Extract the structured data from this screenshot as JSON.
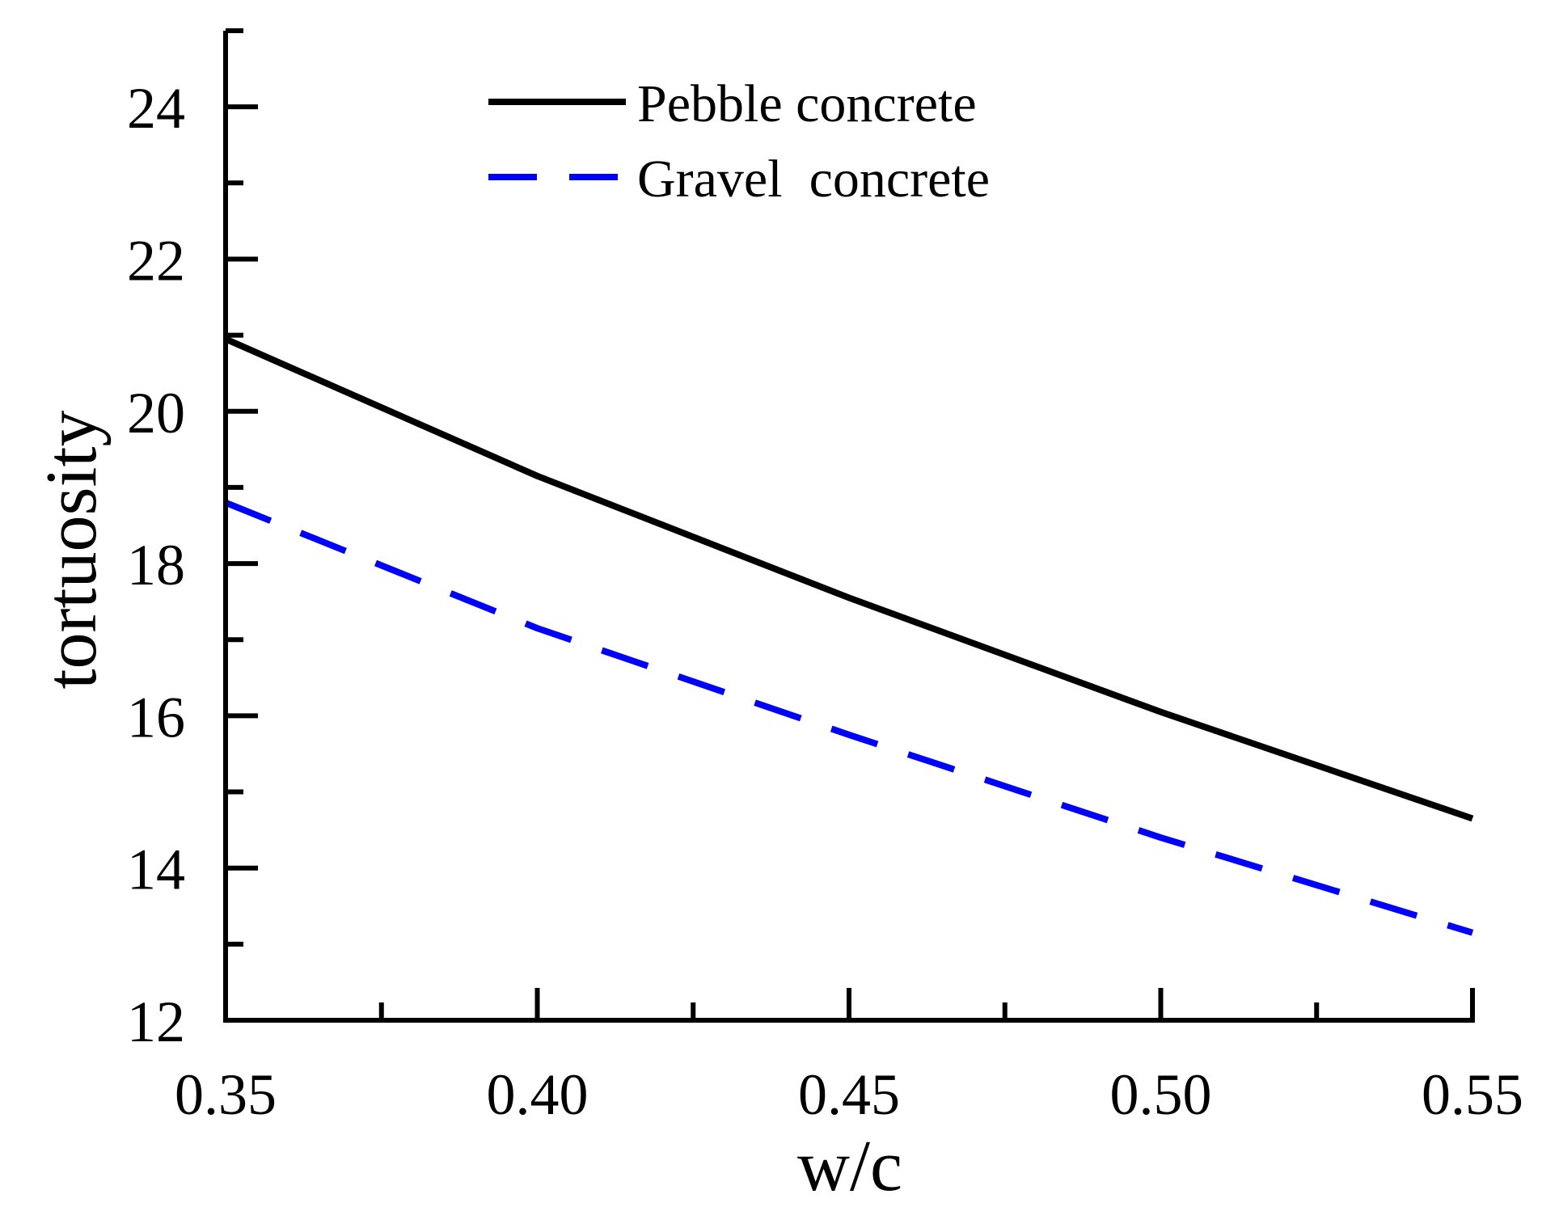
{
  "chart_data": {
    "type": "line",
    "xlabel": "w/c",
    "ylabel": "tortuosity",
    "xlim": [
      0.35,
      0.55
    ],
    "ylim": [
      12,
      25
    ],
    "x_ticks": [
      "0.35",
      "0.40",
      "0.45",
      "0.50",
      "0.55"
    ],
    "y_ticks": [
      "12",
      "14",
      "16",
      "18",
      "20",
      "22",
      "24"
    ],
    "x_minor_tick_step": 0.025,
    "y_minor_tick_step": 1,
    "legend_position": "top-center",
    "grid": false,
    "series": [
      {
        "name": "Pebble concrete",
        "color": "#000000",
        "style": "solid",
        "x": [
          0.35,
          0.4,
          0.45,
          0.5,
          0.55
        ],
        "values": [
          20.95,
          19.15,
          17.55,
          16.05,
          14.65
        ]
      },
      {
        "name": "Gravel  concrete",
        "color": "#0000ff",
        "style": "dashed",
        "x": [
          0.35,
          0.4,
          0.45,
          0.5,
          0.55
        ],
        "values": [
          18.8,
          17.15,
          15.75,
          14.4,
          13.15
        ]
      }
    ]
  }
}
